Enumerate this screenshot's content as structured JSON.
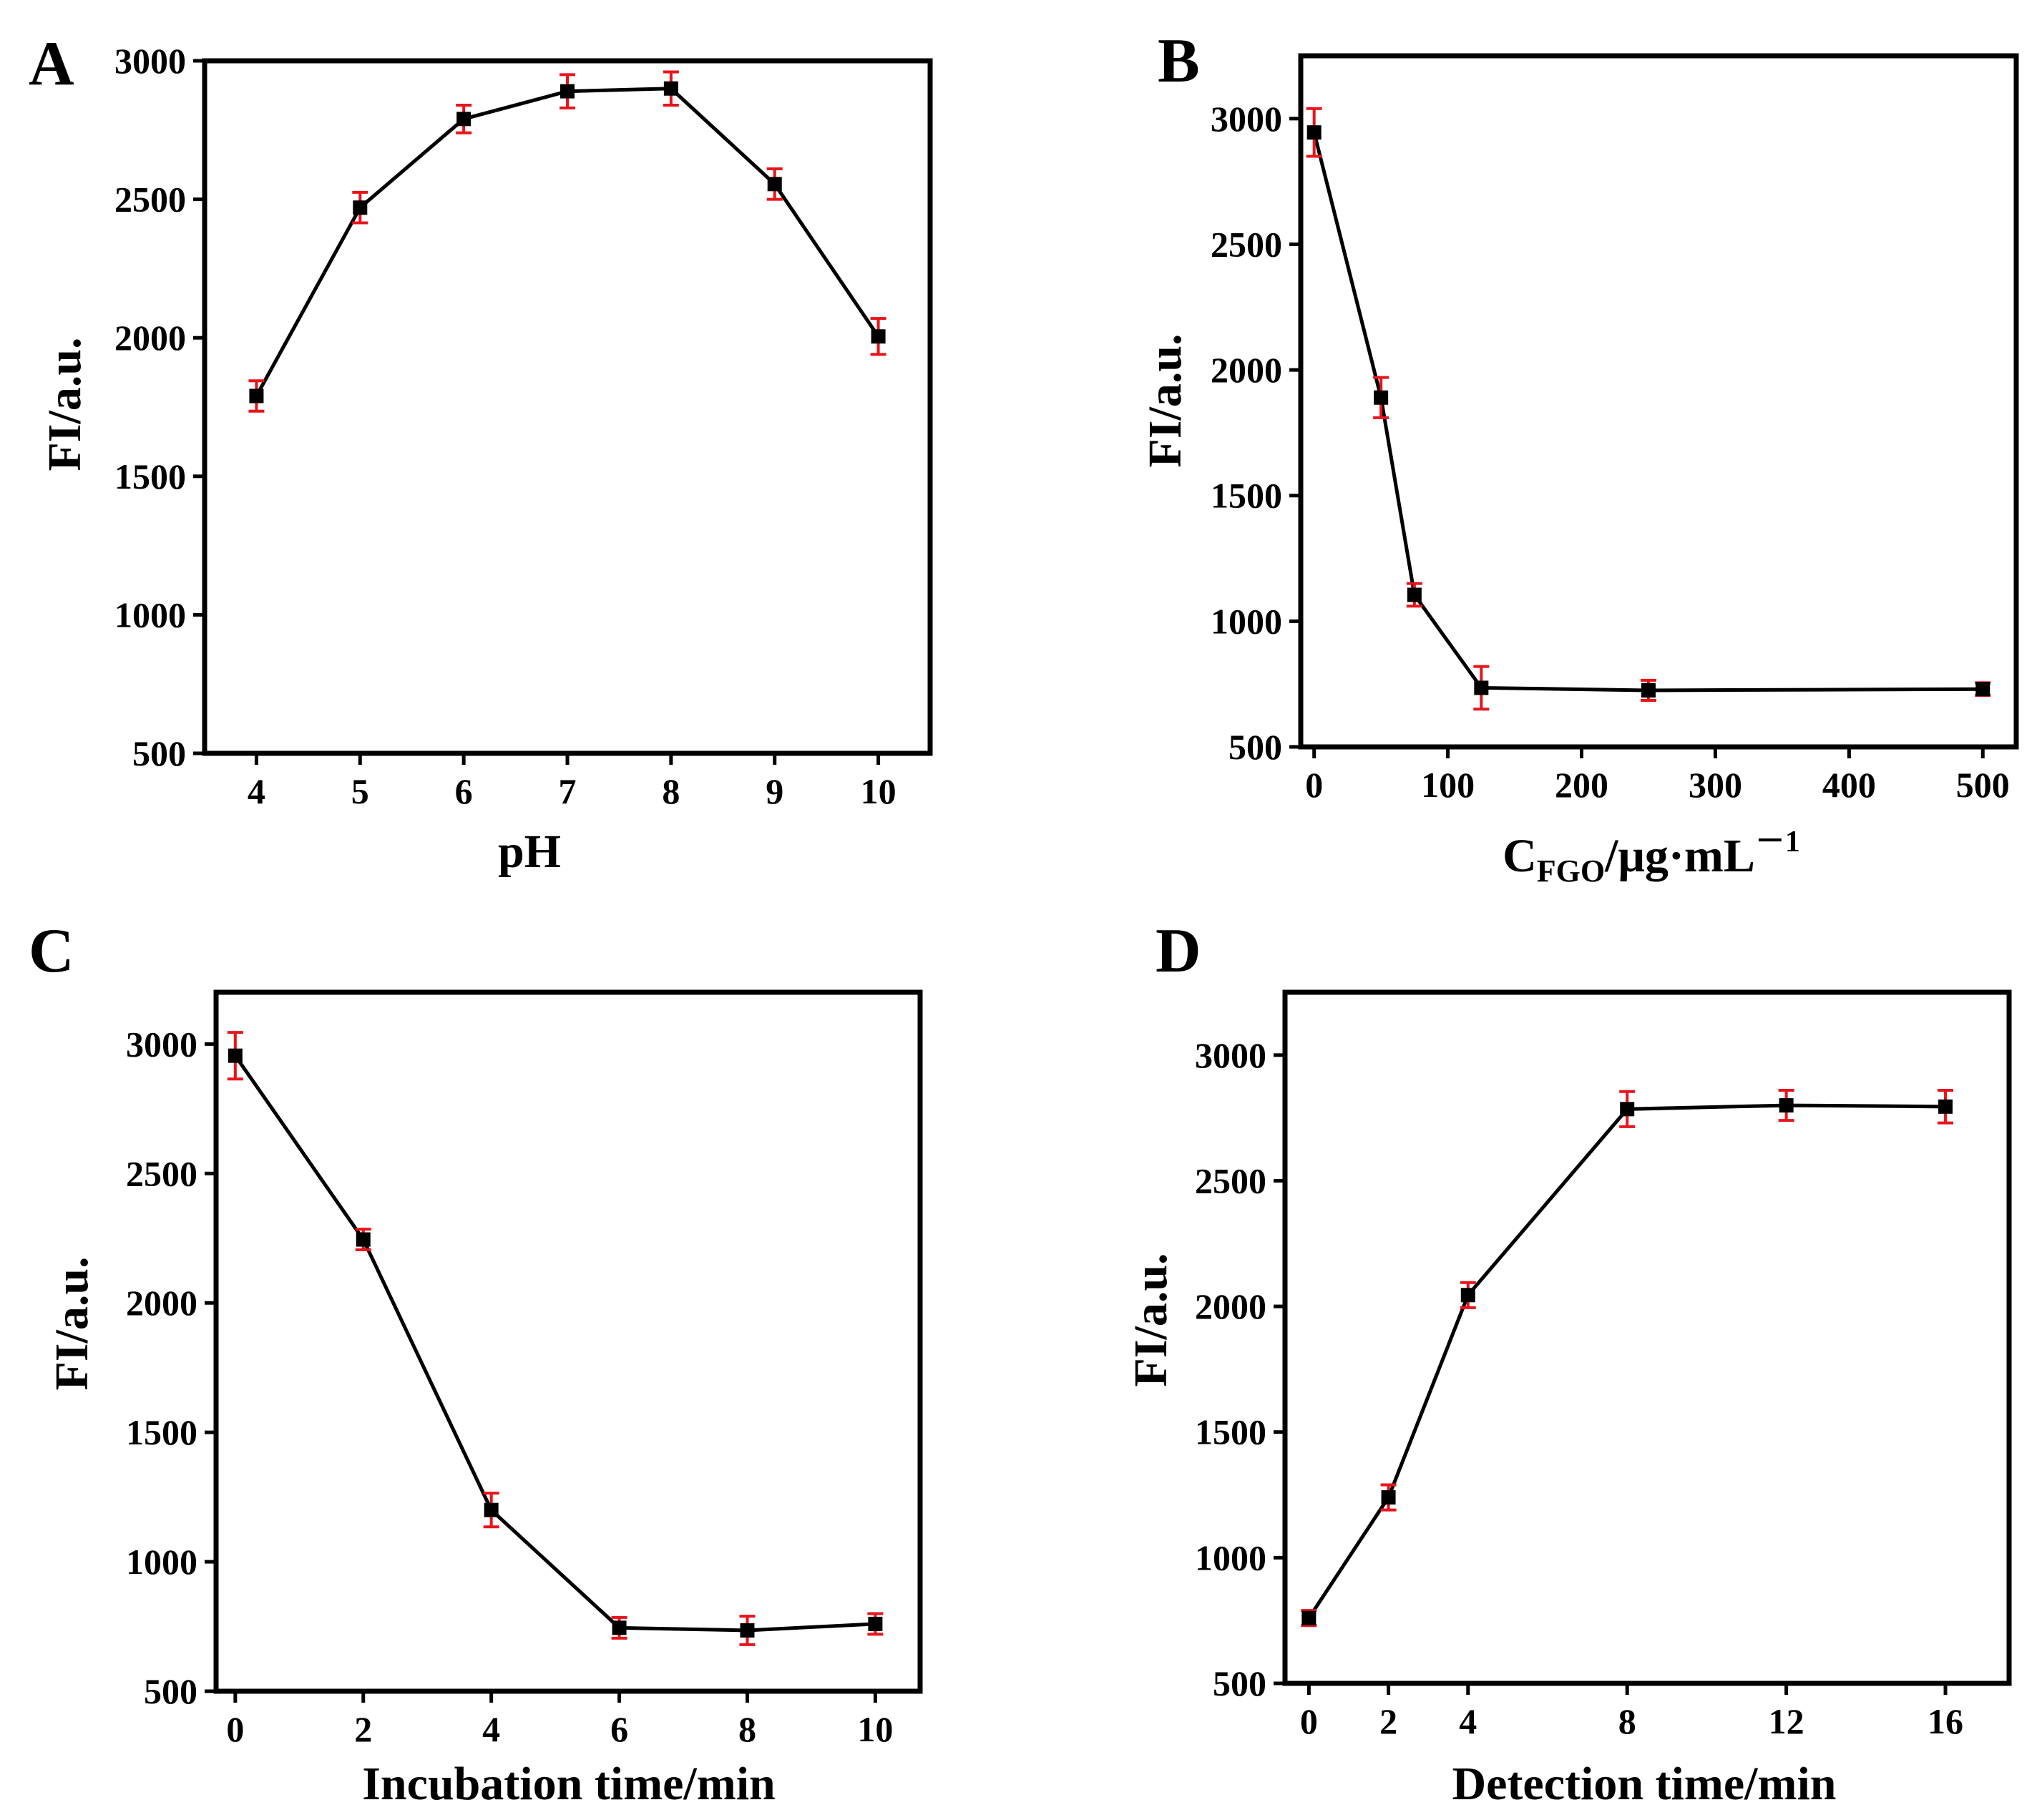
{
  "chart_data": [
    {
      "type": "line",
      "panel_label": "A",
      "title": "",
      "xlabel": "pH",
      "ylabel": "FI/a.u.",
      "xlim": [
        3.5,
        10.5
      ],
      "ylim": [
        500,
        3000
      ],
      "x": [
        4,
        5,
        6,
        7,
        8,
        9,
        10
      ],
      "series": [
        {
          "name": "FI",
          "values": [
            1790,
            2470,
            2790,
            2890,
            2900,
            2555,
            2005
          ],
          "error": [
            55,
            55,
            50,
            60,
            60,
            55,
            65
          ]
        }
      ],
      "xticks": [
        "4",
        "5",
        "6",
        "7",
        "8",
        "9",
        "10"
      ],
      "yticks": [
        "500",
        "1000",
        "1500",
        "2000",
        "2500",
        "3000"
      ],
      "xtick_values": [
        4,
        5,
        6,
        7,
        8,
        9,
        10
      ],
      "ytick_values": [
        500,
        1000,
        1500,
        2000,
        2500,
        3000
      ]
    },
    {
      "type": "line",
      "panel_label": "B",
      "title": "",
      "xlabel": "C",
      "xlabel_sub": "FGO",
      "xlabel_rest": "/μg·mL",
      "xlabel_sup": "－1",
      "ylabel": "FI/a.u.",
      "xlim": [
        -10,
        525
      ],
      "ylim": [
        500,
        3250
      ],
      "x": [
        0,
        50,
        75,
        125,
        250,
        500
      ],
      "series": [
        {
          "name": "FI",
          "values": [
            2945,
            1890,
            1105,
            735,
            725,
            730
          ],
          "error": [
            95,
            80,
            45,
            85,
            40,
            25
          ]
        }
      ],
      "xticks": [
        "0",
        "100",
        "200",
        "300",
        "400",
        "500"
      ],
      "yticks": [
        "500",
        "1000",
        "1500",
        "2000",
        "2500",
        "3000"
      ],
      "xtick_values": [
        0,
        100,
        200,
        300,
        400,
        500
      ],
      "ytick_values": [
        500,
        1000,
        1500,
        2000,
        2500,
        3000
      ]
    },
    {
      "type": "line",
      "panel_label": "C",
      "title": "",
      "xlabel": "Incubation time/min",
      "ylabel": "FI/a.u.",
      "xlim": [
        -0.3,
        10.7
      ],
      "ylim": [
        500,
        3200
      ],
      "x": [
        0,
        2,
        4,
        6,
        8,
        10
      ],
      "series": [
        {
          "name": "FI",
          "values": [
            2955,
            2245,
            1200,
            745,
            735,
            760
          ],
          "error": [
            90,
            40,
            65,
            40,
            55,
            40
          ]
        }
      ],
      "xticks": [
        "0",
        "2",
        "4",
        "6",
        "8",
        "10"
      ],
      "yticks": [
        "500",
        "1000",
        "1500",
        "2000",
        "2500",
        "3000"
      ],
      "xtick_values": [
        0,
        2,
        4,
        6,
        8,
        10
      ],
      "ytick_values": [
        500,
        1000,
        1500,
        2000,
        2500,
        3000
      ]
    },
    {
      "type": "line",
      "panel_label": "D",
      "title": "",
      "xlabel": "Detection time/min",
      "ylabel": "FI/a.u.",
      "xlim": [
        -0.6,
        17.6
      ],
      "ylim": [
        500,
        3250
      ],
      "x": [
        0,
        2,
        4,
        8,
        12,
        16
      ],
      "series": [
        {
          "name": "FI",
          "values": [
            760,
            1240,
            2045,
            2785,
            2800,
            2795
          ],
          "error": [
            30,
            50,
            50,
            70,
            60,
            65
          ]
        }
      ],
      "xticks": [
        "0",
        "2",
        "4",
        "8",
        "12",
        "16"
      ],
      "yticks": [
        "500",
        "1000",
        "1500",
        "2000",
        "2500",
        "3000"
      ],
      "xtick_values": [
        0,
        2,
        4,
        8,
        12,
        16
      ],
      "ytick_values": [
        500,
        1000,
        1500,
        2000,
        2500,
        3000
      ]
    }
  ],
  "colors": {
    "line": "#000000",
    "marker": "#000000",
    "error_bar": "#e8141b"
  }
}
